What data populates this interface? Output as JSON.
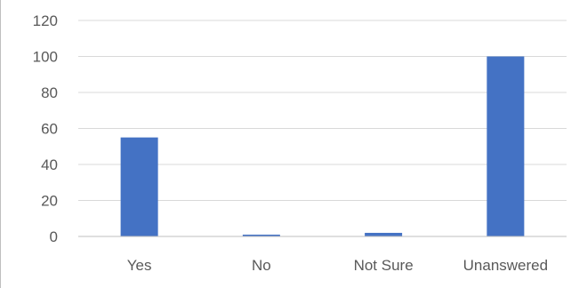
{
  "chart_data": {
    "type": "bar",
    "categories": [
      "Yes",
      "No",
      "Not Sure",
      "Unanswered"
    ],
    "values": [
      55,
      1,
      2,
      100
    ],
    "ylim": [
      0,
      120
    ],
    "yticks": [
      0,
      20,
      40,
      60,
      80,
      100,
      120
    ],
    "title": "",
    "xlabel": "",
    "ylabel": "",
    "grid": true,
    "legend": "none",
    "bar_color": "#4472C4"
  }
}
